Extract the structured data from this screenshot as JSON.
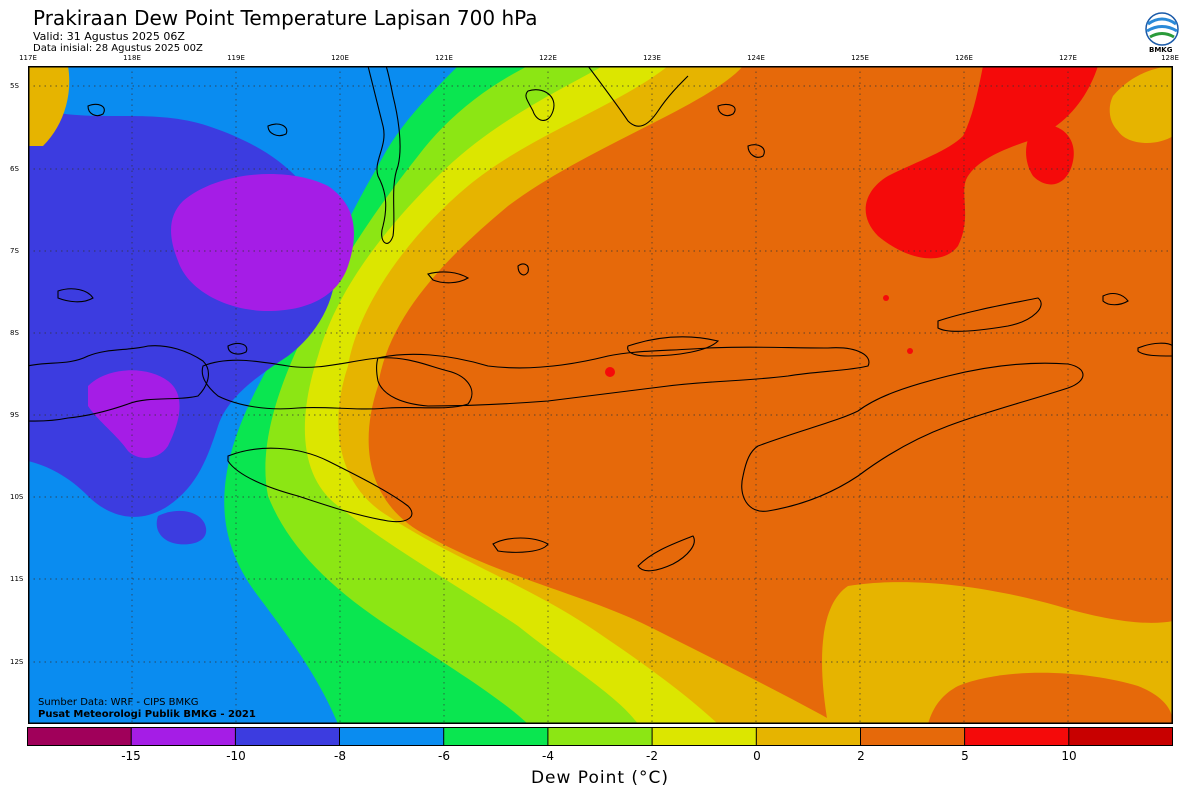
{
  "header": {
    "title": "Prakiraan Dew Point Temperature Lapisan 700 hPa",
    "valid": "Valid: 31 Agustus 2025 06Z",
    "init": "Data inisial: 28 Agustus 2025 00Z"
  },
  "logo": {
    "text": "BMKG",
    "icon": "bmkg-logo-icon"
  },
  "map": {
    "lon_labels": [
      "117E",
      "118E",
      "119E",
      "120E",
      "121E",
      "122E",
      "123E",
      "124E",
      "125E",
      "126E",
      "127E",
      "128E"
    ],
    "lat_labels": [
      "5S",
      "6S",
      "7S",
      "8S",
      "9S",
      "10S",
      "11S",
      "12S"
    ],
    "credits": {
      "source": "Sumber Data: WRF - CIPS BMKG",
      "center": "Pusat Meteorologi Publik BMKG - 2021"
    }
  },
  "colorbar": {
    "ticks": [
      "-15",
      "-10",
      "-8",
      "-6",
      "-4",
      "-2",
      "0",
      "2",
      "5",
      "10"
    ],
    "colors": [
      "#a0005a",
      "#a51de6",
      "#3c3ce0",
      "#0a8cf0",
      "#0ae650",
      "#8ce614",
      "#dce600",
      "#e6b400",
      "#e6690a",
      "#f50a0a",
      "#c80000"
    ],
    "label": "Dew Point (°C)"
  }
}
